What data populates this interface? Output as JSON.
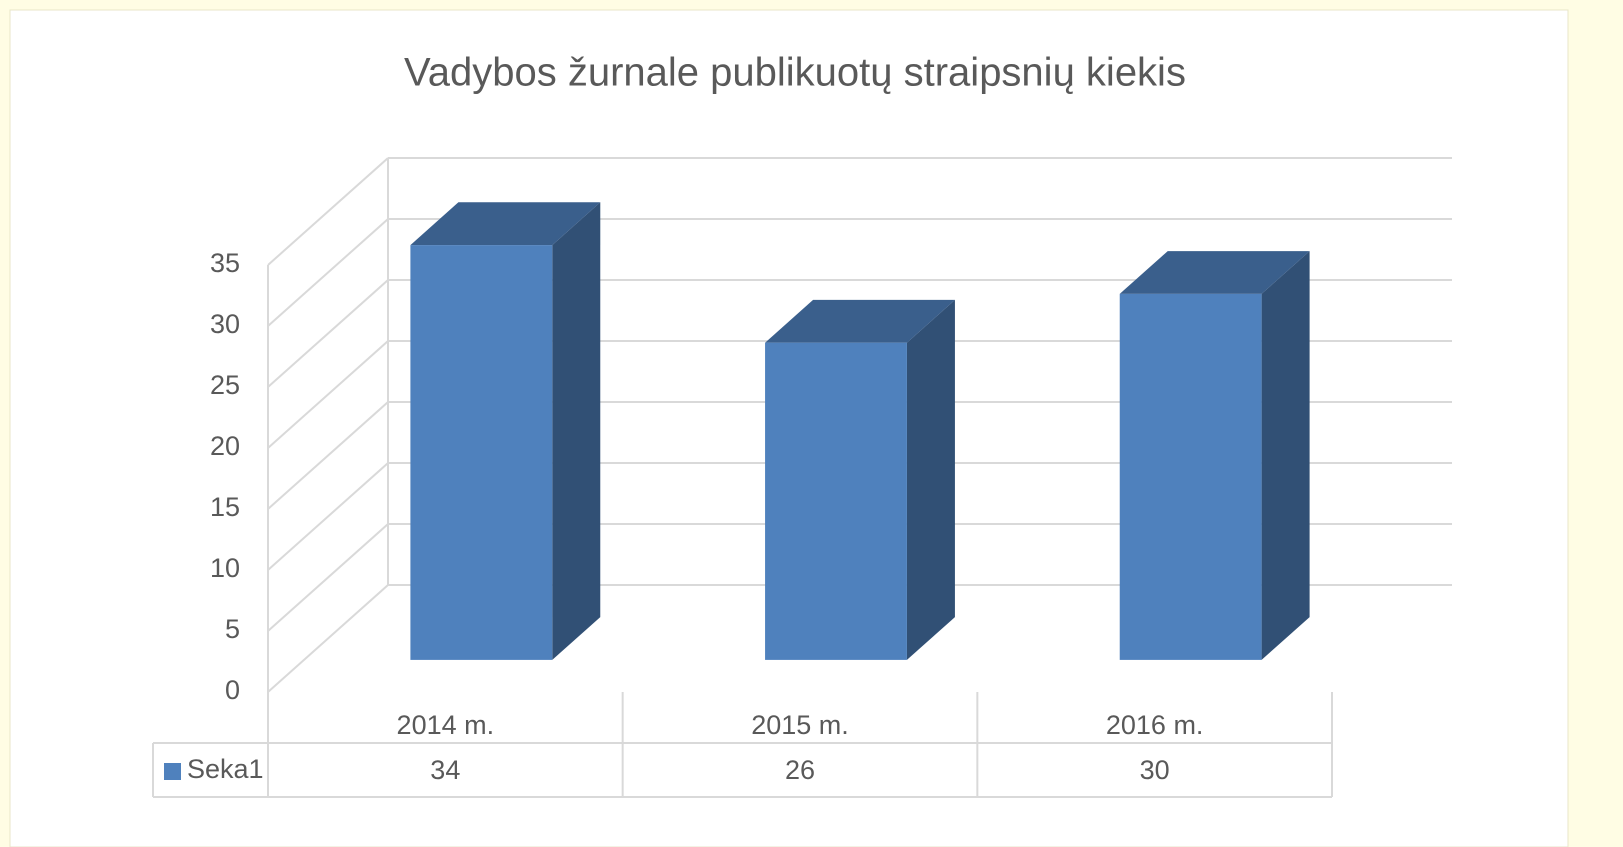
{
  "chart_data": {
    "type": "bar3d",
    "title": "Vadybos žurnale publikuotų straipsnių kiekis",
    "categories": [
      "2014 m.",
      "2015 m.",
      "2016 m."
    ],
    "series": [
      {
        "name": "Seka1",
        "color": "#4f81bd",
        "values": [
          34,
          26,
          30
        ]
      }
    ],
    "ylim": [
      0,
      35
    ],
    "yticks": [
      0,
      5,
      10,
      15,
      20,
      25,
      30,
      35
    ],
    "grid": true,
    "data_table": true
  }
}
